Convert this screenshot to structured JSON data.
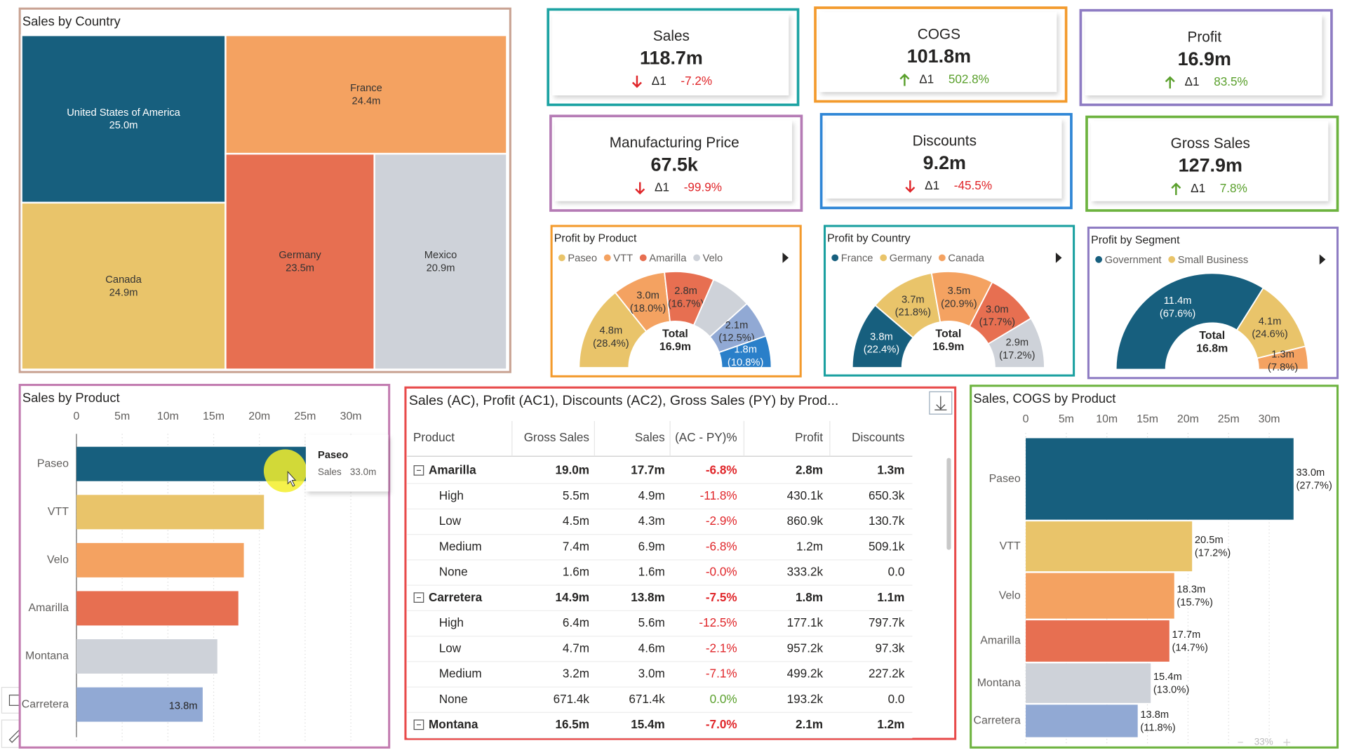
{
  "trend_colors": {
    "up": "#5aa02c",
    "down": "#e0262a"
  },
  "kpis": [
    {
      "title": "Sales",
      "value": "118.7m",
      "trend": "down",
      "delta_label": "Δ1",
      "change": "-7.2%",
      "color": "#1ca3a3"
    },
    {
      "title": "COGS",
      "value": "101.8m",
      "trend": "up",
      "delta_label": "Δ1",
      "change": "502.8%",
      "color": "#f39a2c"
    },
    {
      "title": "Profit",
      "value": "16.9m",
      "trend": "up",
      "delta_label": "Δ1",
      "change": "83.5%",
      "color": "#8e7cc3"
    },
    {
      "title": "Manufacturing Price",
      "value": "67.5k",
      "trend": "down",
      "delta_label": "Δ1",
      "change": "-99.9%",
      "color": "#b57bb5"
    },
    {
      "title": "Discounts",
      "value": "9.2m",
      "trend": "down",
      "delta_label": "Δ1",
      "change": "-45.5%",
      "color": "#2f86d6"
    },
    {
      "title": "Gross Sales",
      "value": "127.9m",
      "trend": "up",
      "delta_label": "Δ1",
      "change": "7.8%",
      "color": "#6db33f"
    }
  ],
  "chart_data": [
    {
      "type": "treemap",
      "title": "Sales by Country",
      "categories": [
        "United States of America",
        "Canada",
        "France",
        "Germany",
        "Mexico"
      ],
      "values": [
        25.0,
        24.9,
        24.4,
        23.5,
        20.9
      ],
      "value_labels": [
        "25.0m",
        "24.9m",
        "24.4m",
        "23.5m",
        "20.9m"
      ],
      "colors": [
        "#175f7e",
        "#e9c46a",
        "#f4a261",
        "#e76f51",
        "#ced2d9"
      ]
    },
    {
      "type": "donut",
      "title": "Profit by Product",
      "categories": [
        "Paseo",
        "VTT",
        "Amarilla",
        "Velo",
        null,
        null
      ],
      "values": [
        4.8,
        3.0,
        2.8,
        2.3,
        2.1,
        1.8
      ],
      "value_labels": [
        [
          "4.8m",
          "(28.4%)"
        ],
        [
          "3.0m",
          "(18.0%)"
        ],
        [
          "2.8m",
          "(16.7%)"
        ],
        null,
        [
          "2.1m",
          "(12.5%)"
        ],
        [
          "1.8m",
          "(10.8%)"
        ]
      ],
      "colors": [
        "#e9c46a",
        "#f4a261",
        "#e76f51",
        "#ced2d9",
        "#91a9d4",
        "#2a7fc9"
      ],
      "center_label": "Total",
      "total_label": "16.9m"
    },
    {
      "type": "donut",
      "title": "Profit by Country",
      "categories": [
        "France",
        "Germany",
        "Canada",
        null,
        null
      ],
      "values": [
        3.8,
        3.7,
        3.5,
        3.0,
        2.9
      ],
      "value_labels": [
        [
          "3.8m",
          "(22.4%)"
        ],
        [
          "3.7m",
          "(21.8%)"
        ],
        [
          "3.5m",
          "(20.9%)"
        ],
        [
          "3.0m",
          "(17.7%)"
        ],
        [
          "2.9m",
          "(17.2%)"
        ]
      ],
      "colors": [
        "#175f7e",
        "#e9c46a",
        "#f4a261",
        "#e76f51",
        "#ced2d9"
      ],
      "center_label": "Total",
      "total_label": "16.9m"
    },
    {
      "type": "donut",
      "title": "Profit by Segment",
      "categories": [
        "Government",
        "Small Business",
        null
      ],
      "values": [
        11.4,
        4.1,
        1.3
      ],
      "value_labels": [
        [
          "11.4m",
          "(67.6%)"
        ],
        [
          "4.1m",
          "(24.6%)"
        ],
        [
          "1.3m",
          "(7.8%)"
        ]
      ],
      "colors": [
        "#175f7e",
        "#e9c46a",
        "#f4a261"
      ],
      "center_label": "Total",
      "total_label": "16.8m"
    },
    {
      "type": "bar",
      "title": "Sales by Product",
      "categories": [
        "Paseo",
        "VTT",
        "Velo",
        "Amarilla",
        "Montana",
        "Carretera"
      ],
      "values": [
        33.0,
        20.5,
        18.3,
        17.7,
        15.4,
        13.8
      ],
      "value_labels": [
        null,
        null,
        null,
        null,
        null,
        "13.8m"
      ],
      "colors": [
        "#175f7e",
        "#e9c46a",
        "#f4a261",
        "#e76f51",
        "#ced2d9",
        "#91a9d4"
      ],
      "xlim": [
        0,
        34
      ],
      "xticks": [
        0,
        {
          "value": 5,
          "label": "5m"
        },
        {
          "value": 10,
          "label": "10m"
        },
        {
          "value": 15,
          "label": "15m"
        },
        {
          "value": 20,
          "label": "20m"
        },
        {
          "value": 25,
          "label": "25m"
        },
        {
          "value": 30,
          "label": "30m"
        }
      ],
      "grid": true,
      "tooltip": {
        "title": "Paseo",
        "label": "Sales",
        "value": "33.0m"
      }
    },
    {
      "type": "variwide",
      "title": "Sales, COGS by Product",
      "categories": [
        "Paseo",
        "VTT",
        "Velo",
        "Amarilla",
        "Montana",
        "Carretera"
      ],
      "values": [
        33.0,
        20.5,
        18.3,
        17.7,
        15.4,
        13.8
      ],
      "widths": [
        28.6,
        17.5,
        16.0,
        14.5,
        13.9,
        11.4
      ],
      "value_labels": [
        [
          "33.0m",
          "(27.7%)"
        ],
        [
          "20.5m",
          "(17.2%)"
        ],
        [
          "18.3m",
          "(15.7%)"
        ],
        [
          "17.7m",
          "(14.7%)"
        ],
        [
          "15.4m",
          "(13.0%)"
        ],
        [
          "13.8m",
          "(11.8%)"
        ]
      ],
      "colors": [
        "#175f7e",
        "#e9c46a",
        "#f4a261",
        "#e76f51",
        "#ced2d9",
        "#91a9d4"
      ],
      "xlim": [
        0,
        38
      ],
      "xticks": [
        0,
        {
          "value": 5,
          "label": "5m"
        },
        {
          "value": 10,
          "label": "10m"
        },
        {
          "value": 15,
          "label": "15m"
        },
        {
          "value": 20,
          "label": "20m"
        },
        {
          "value": 25,
          "label": "25m"
        },
        {
          "value": 30,
          "label": "30m"
        }
      ],
      "grid": true
    }
  ],
  "table": {
    "title": "Sales (AC), Profit (AC1), Discounts (AC2), Gross Sales (PY) by Prod...",
    "columns": [
      "Product",
      "Gross Sales",
      "Sales",
      "(AC - PY)%",
      "Profit",
      "Discounts"
    ],
    "rows": [
      {
        "level": "group",
        "cells": [
          "Amarilla",
          "19.0m",
          "17.7m",
          "-6.8%",
          "2.8m",
          "1.3m"
        ]
      },
      {
        "level": "child",
        "cells": [
          "High",
          "5.5m",
          "4.9m",
          "-11.8%",
          "430.1k",
          "650.3k"
        ]
      },
      {
        "level": "child",
        "cells": [
          "Low",
          "4.5m",
          "4.3m",
          "-2.9%",
          "860.9k",
          "130.7k"
        ]
      },
      {
        "level": "child",
        "cells": [
          "Medium",
          "7.4m",
          "6.9m",
          "-6.8%",
          "1.2m",
          "509.1k"
        ]
      },
      {
        "level": "child",
        "cells": [
          "None",
          "1.6m",
          "1.6m",
          "-0.0%",
          "333.2k",
          "0.0"
        ]
      },
      {
        "level": "group",
        "cells": [
          "Carretera",
          "14.9m",
          "13.8m",
          "-7.5%",
          "1.8m",
          "1.1m"
        ]
      },
      {
        "level": "child",
        "cells": [
          "High",
          "6.4m",
          "5.6m",
          "-12.5%",
          "177.1k",
          "797.7k"
        ]
      },
      {
        "level": "child",
        "cells": [
          "Low",
          "4.7m",
          "4.6m",
          "-2.1%",
          "957.2k",
          "97.3k"
        ]
      },
      {
        "level": "child",
        "cells": [
          "Medium",
          "3.2m",
          "3.0m",
          "-7.1%",
          "499.2k",
          "227.2k"
        ]
      },
      {
        "level": "child",
        "cells": [
          "None",
          "671.4k",
          "671.4k",
          "0.0%",
          "193.2k",
          "0.0"
        ]
      },
      {
        "level": "group",
        "cells": [
          "Montana",
          "16.5m",
          "15.4m",
          "-7.0%",
          "2.1m",
          "1.2m"
        ]
      }
    ]
  },
  "zoom": "33%"
}
